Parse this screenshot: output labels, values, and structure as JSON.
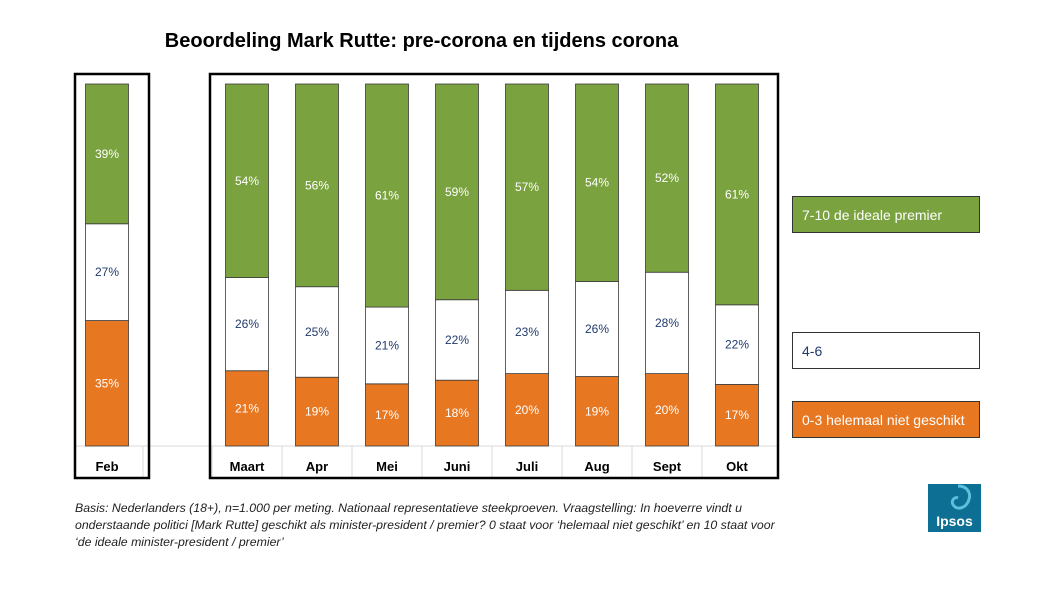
{
  "colors": {
    "high": "#7aa23f",
    "mid": "#ffffff",
    "low": "#e87722",
    "mid_label": "#1f3a6e",
    "frame": "#000000"
  },
  "chart_data": {
    "type": "bar",
    "stacked": true,
    "title": "Beoordeling Mark Rutte: pre-corona en tijdens corona",
    "categories": [
      "Feb",
      "Maart",
      "Apr",
      "Mei",
      "Juni",
      "Juli",
      "Aug",
      "Sept",
      "Okt"
    ],
    "series": [
      {
        "name": "0-3 helemaal niet geschikt",
        "values": [
          35,
          21,
          19,
          17,
          18,
          20,
          19,
          20,
          17
        ],
        "labels": [
          "35%",
          "21%",
          "19%",
          "17%",
          "18%",
          "20%",
          "19%",
          "20%",
          "17%"
        ]
      },
      {
        "name": "4-6",
        "values": [
          27,
          26,
          25,
          21,
          22,
          23,
          26,
          28,
          22
        ],
        "labels": [
          "27%",
          "26%",
          "25%",
          "21%",
          "22%",
          "23%",
          "26%",
          "28%",
          "22%"
        ]
      },
      {
        "name": "7-10 de ideale premier",
        "values": [
          39,
          54,
          56,
          61,
          59,
          57,
          54,
          52,
          61
        ],
        "labels": [
          "39%",
          "54%",
          "56%",
          "61%",
          "59%",
          "57%",
          "54%",
          "52%",
          "61%"
        ]
      }
    ],
    "ylim": [
      0,
      100
    ],
    "legend_position": "right"
  },
  "footnote": "Basis: Nederlanders (18+), n=1.000 per meting. Nationaal representatieve steekproeven. Vraagstelling: In hoeverre vindt u onderstaande politici [Mark Rutte] geschikt als minister-president / premier? 0 staat voor ‘helemaal niet geschikt’ en 10 staat voor ‘de ideale minister-president / premier’",
  "logo": {
    "text": "Ipsos"
  }
}
